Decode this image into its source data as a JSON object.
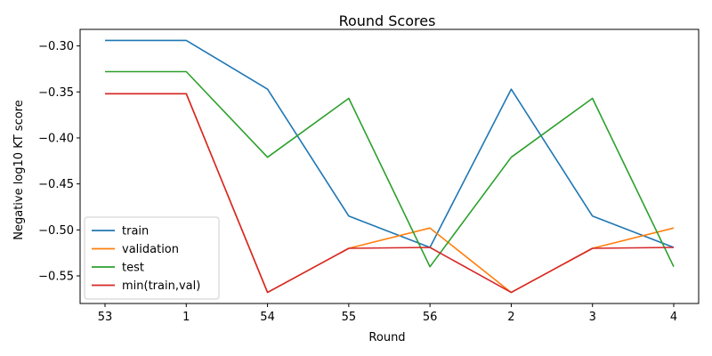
{
  "chart_data": {
    "type": "line",
    "title": "Round Scores",
    "xlabel": "Round",
    "ylabel": "Negative log10 KT score",
    "categories": [
      "53",
      "1",
      "54",
      "55",
      "56",
      "2",
      "3",
      "4"
    ],
    "ylim": [
      -0.58,
      -0.282
    ],
    "yticks": [
      -0.3,
      -0.35,
      -0.4,
      -0.45,
      -0.5,
      -0.55
    ],
    "ytick_labels": [
      "−0.30",
      "−0.35",
      "−0.40",
      "−0.45",
      "−0.50",
      "−0.55"
    ],
    "grid": false,
    "legend_position": "lower-left",
    "series": [
      {
        "name": "train",
        "color": "#1f77b4",
        "values": [
          -0.294,
          -0.294,
          -0.347,
          -0.485,
          -0.519,
          -0.347,
          -0.485,
          -0.519
        ]
      },
      {
        "name": "validation",
        "color": "#ff7f0e",
        "values": [
          -0.352,
          -0.352,
          -0.568,
          -0.52,
          -0.498,
          -0.568,
          -0.52,
          -0.498
        ]
      },
      {
        "name": "test",
        "color": "#2ca02c",
        "values": [
          -0.328,
          -0.328,
          -0.421,
          -0.357,
          -0.54,
          -0.421,
          -0.357,
          -0.54
        ]
      },
      {
        "name": "min(train,val)",
        "color": "#d62728",
        "values": [
          -0.352,
          -0.352,
          -0.568,
          -0.52,
          -0.519,
          -0.568,
          -0.52,
          -0.519
        ]
      }
    ]
  }
}
